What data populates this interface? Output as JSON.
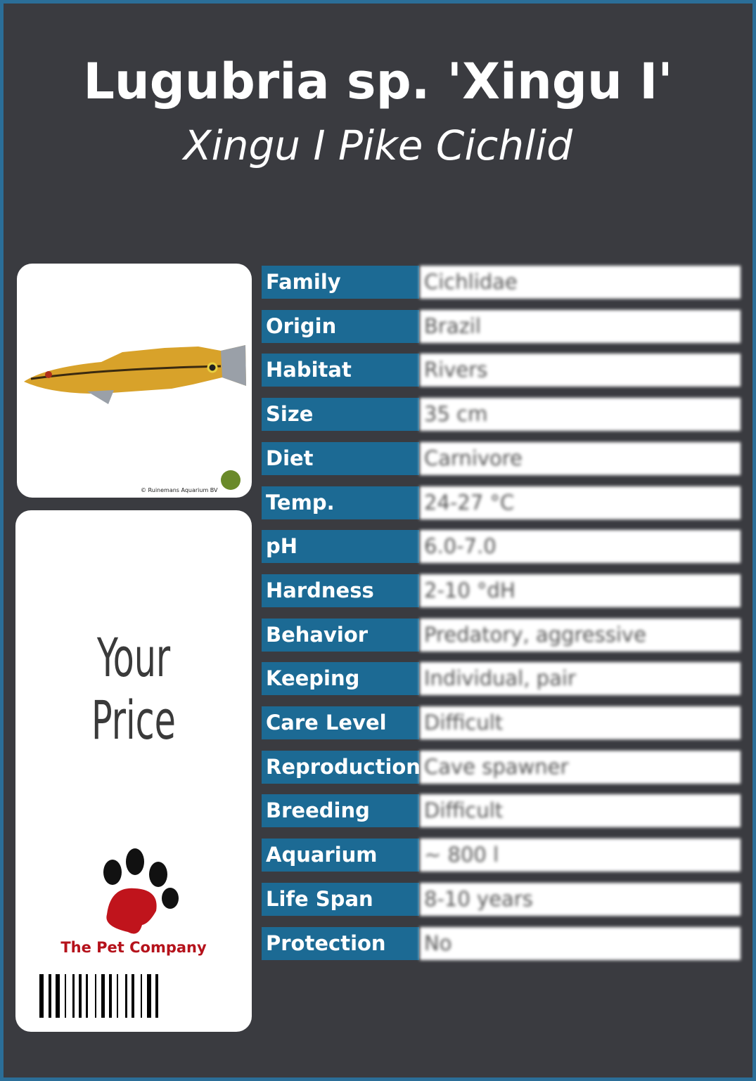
{
  "header": {
    "title": "Lugubria sp. 'Xingu I'",
    "subtitle": "Xingu I Pike Cichlid"
  },
  "image": {
    "credit": "© Ruinemans Aquarium BV"
  },
  "price": {
    "label": "Your Price"
  },
  "brand": {
    "name": "The Pet Company"
  },
  "table": {
    "rows": [
      [
        "Family",
        "Cichlidae"
      ],
      [
        "Origin",
        "Brazil"
      ],
      [
        "Habitat",
        "Rivers"
      ],
      [
        "Size",
        "35 cm"
      ],
      [
        "Diet",
        "Carnivore"
      ],
      [
        "Temp.",
        "24-27 °C"
      ],
      [
        "pH",
        "6.0-7.0"
      ],
      [
        "Hardness",
        "2-10 °dH"
      ],
      [
        "Behavior",
        "Predatory, aggressive"
      ],
      [
        "Keeping",
        "Individual, pair"
      ],
      [
        "Care Level",
        "Difficult"
      ],
      [
        "Reproduction",
        "Cave spawner"
      ],
      [
        "Breeding",
        "Difficult"
      ],
      [
        "Aquarium",
        "~ 800 l"
      ],
      [
        "Life Span",
        "8-10 years"
      ],
      [
        "Protection",
        "No"
      ]
    ]
  }
}
